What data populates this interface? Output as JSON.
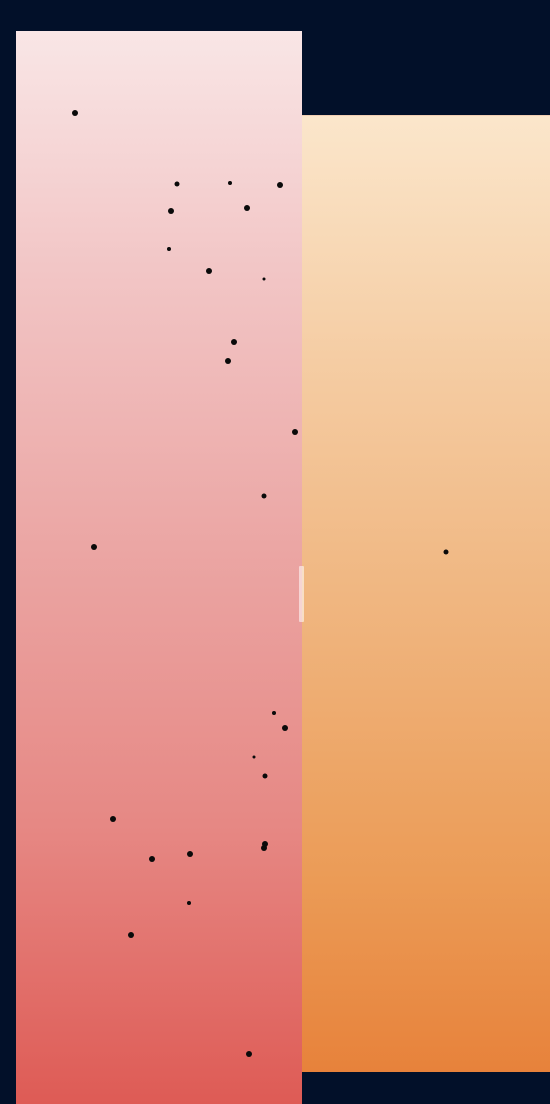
{
  "panels": [
    {
      "name": "left-gradient-panel",
      "colors": [
        "#f9e6e6",
        "#de5b55"
      ]
    },
    {
      "name": "right-gradient-panel",
      "colors": [
        "#fbe6cb",
        "#e7823b"
      ]
    }
  ],
  "background_color": "#021029",
  "dot_color": "#0a0a0a"
}
